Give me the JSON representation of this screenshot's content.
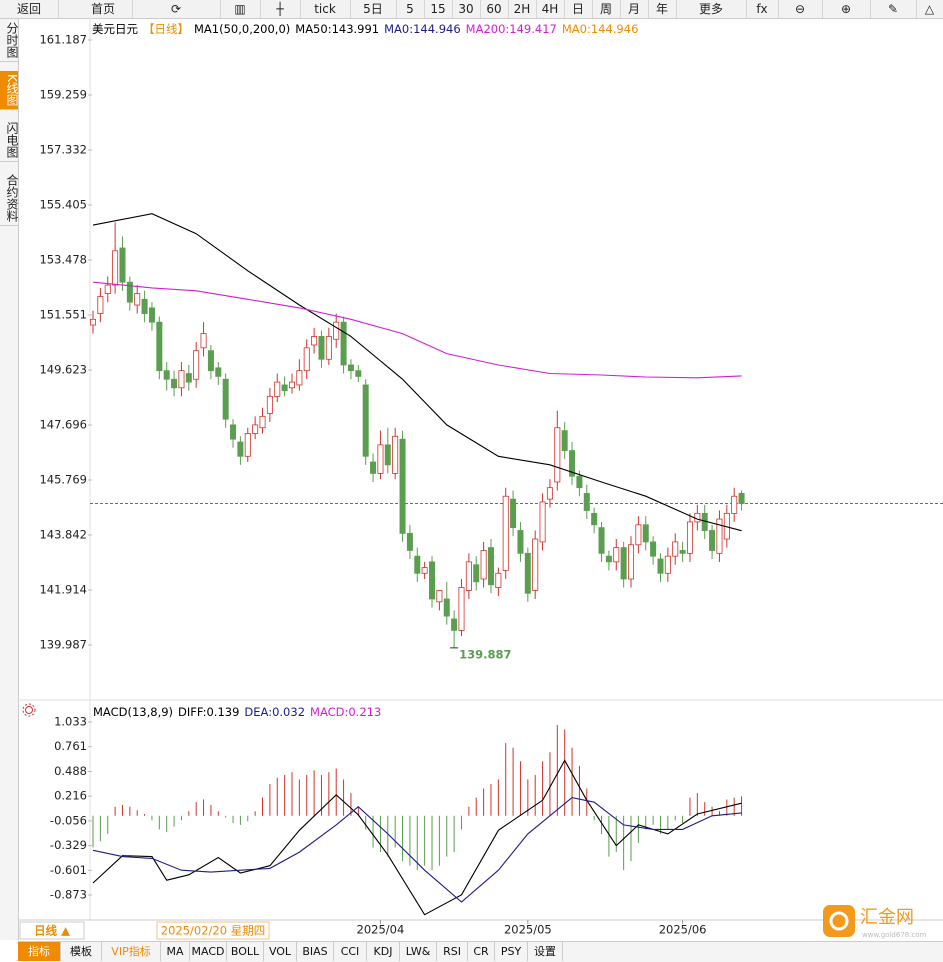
{
  "toolbar": [
    "返回",
    "首页",
    "tick",
    "5日",
    "5",
    "15",
    "30",
    "60",
    "2H",
    "4H",
    "日",
    "周",
    "月",
    "年",
    "更多"
  ],
  "sidebar": [
    "分时图",
    "K线图",
    "闪电图",
    "合约资料"
  ],
  "bottom_tabs": [
    "指标",
    "模板",
    "VIP指标",
    "MA",
    "MACD",
    "BOLL",
    "VOL",
    "BIAS",
    "CCI",
    "KDJ",
    "LW&",
    "RSI",
    "CR",
    "PSY",
    "设置"
  ],
  "period_button": "日线 ▲",
  "crosshair_date": "2025/02/20 星期四",
  "watermark": {
    "name": "汇金网",
    "url": "www.gold678.com"
  },
  "chart_data": [
    {
      "type": "candlestick",
      "legend": [
        {
          "text": "美元日元",
          "color": "#000000"
        },
        {
          "text": "【日线】",
          "color": "#f08a00"
        },
        {
          "text": "MA1(50,0,200,0)",
          "color": "#000000"
        },
        {
          "text": "MA50:143.991",
          "color": "#000000"
        },
        {
          "text": "MA0:144.946",
          "color": "#1c1c8c"
        },
        {
          "text": "MA200:149.417",
          "color": "#d21ed2"
        },
        {
          "text": "MA0:144.946",
          "color": "#f08a00"
        }
      ],
      "categories": [
        null,
        null,
        null,
        null,
        null,
        null,
        null,
        null,
        null,
        null,
        null,
        null,
        null,
        null,
        null,
        null,
        null,
        null,
        null,
        null,
        null,
        null,
        null,
        null,
        null,
        null,
        null,
        null,
        null,
        null,
        null,
        null,
        null,
        null,
        null,
        null,
        null,
        null,
        null,
        "2025/04",
        null,
        null,
        null,
        null,
        null,
        null,
        null,
        null,
        null,
        null,
        null,
        null,
        null,
        null,
        null,
        null,
        null,
        null,
        null,
        "2025/05",
        null,
        null,
        null,
        null,
        null,
        null,
        null,
        null,
        null,
        null,
        null,
        null,
        null,
        null,
        null,
        null,
        null,
        null,
        null,
        null,
        "2025/06",
        null,
        null,
        null,
        null,
        null,
        null,
        null,
        null
      ],
      "open": [
        151.2,
        151.6,
        152.3,
        152.6,
        153.9,
        152.7,
        151.9,
        152.1,
        151.8,
        151.3,
        149.6,
        149.3,
        149.0,
        149.5,
        149.3,
        150.4,
        150.3,
        149.7,
        149.3,
        147.7,
        147.1,
        146.6,
        147.4,
        147.6,
        148.1,
        148.7,
        149.1,
        149.0,
        149.1,
        149.6,
        150.5,
        150.8,
        150.0,
        150.7,
        151.3,
        149.8,
        149.6,
        149.1,
        146.4,
        146.0,
        147.0,
        146.0,
        147.2,
        143.9,
        143.1,
        142.5,
        142.9,
        141.5,
        141.6,
        140.9,
        140.5,
        141.9,
        142.8,
        142.3,
        143.4,
        142.0,
        142.6,
        145.1,
        144.0,
        143.2,
        141.9,
        143.6,
        145.1,
        145.7,
        147.5,
        146.8,
        145.9,
        145.3,
        144.6,
        144.1,
        143.1,
        142.9,
        143.4,
        142.3,
        143.5,
        144.2,
        143.6,
        143.0,
        142.5,
        143.1,
        143.3,
        143.2,
        144.3,
        144.6,
        144.0,
        143.2,
        143.7,
        144.6,
        145.3
      ],
      "high": [
        151.7,
        152.5,
        152.9,
        154.8,
        154.3,
        152.9,
        152.6,
        152.4,
        152.0,
        151.5,
        149.9,
        149.6,
        149.9,
        149.8,
        150.6,
        151.3,
        150.5,
        149.9,
        149.5,
        147.9,
        147.3,
        147.6,
        148.0,
        148.3,
        149.0,
        149.5,
        149.4,
        149.5,
        150.0,
        150.7,
        151.1,
        151.0,
        151.1,
        151.6,
        151.5,
        150.0,
        149.8,
        149.3,
        146.7,
        147.5,
        147.6,
        147.6,
        147.5,
        144.2,
        143.4,
        142.9,
        143.1,
        141.9,
        142.2,
        141.2,
        142.3,
        143.2,
        143.1,
        143.6,
        143.7,
        142.7,
        145.5,
        145.4,
        144.3,
        143.4,
        144.0,
        145.3,
        145.8,
        148.2,
        147.8,
        147.1,
        146.1,
        145.6,
        144.8,
        144.3,
        143.3,
        143.7,
        143.6,
        143.8,
        144.5,
        144.5,
        143.8,
        143.2,
        143.4,
        143.9,
        143.6,
        144.6,
        144.9,
        144.9,
        144.2,
        144.7,
        144.9,
        145.5,
        145.4
      ],
      "low": [
        150.9,
        151.3,
        152.0,
        152.3,
        152.4,
        151.7,
        151.6,
        151.3,
        151.0,
        149.3,
        148.9,
        148.7,
        148.7,
        148.9,
        149.0,
        150.1,
        149.3,
        149.1,
        147.6,
        146.9,
        146.3,
        146.4,
        147.2,
        147.4,
        147.8,
        148.5,
        148.7,
        148.8,
        148.9,
        149.3,
        150.2,
        149.7,
        149.8,
        150.4,
        149.5,
        149.3,
        149.2,
        146.3,
        145.7,
        145.8,
        146.0,
        145.8,
        143.6,
        143.0,
        142.2,
        142.3,
        141.3,
        141.2,
        140.7,
        139.887,
        140.3,
        141.6,
        141.9,
        142.0,
        141.8,
        141.7,
        142.3,
        143.8,
        142.9,
        141.5,
        141.6,
        143.3,
        144.8,
        145.4,
        146.5,
        145.6,
        145.2,
        144.4,
        143.9,
        142.9,
        142.6,
        142.6,
        142.0,
        142.0,
        143.2,
        143.3,
        142.8,
        142.2,
        142.2,
        142.8,
        142.9,
        142.9,
        144.0,
        143.7,
        143.0,
        142.9,
        143.4,
        144.3,
        144.7
      ],
      "close": [
        151.4,
        152.2,
        152.6,
        153.8,
        152.7,
        152.0,
        152.3,
        151.6,
        151.3,
        149.6,
        149.3,
        149.0,
        149.6,
        149.2,
        150.3,
        150.9,
        149.6,
        149.4,
        147.9,
        147.2,
        146.6,
        147.4,
        147.7,
        148.0,
        148.7,
        149.2,
        148.9,
        149.2,
        149.6,
        150.4,
        150.8,
        150.0,
        150.8,
        151.3,
        149.8,
        149.6,
        149.4,
        146.6,
        146.0,
        147.0,
        146.3,
        147.3,
        143.9,
        143.3,
        142.5,
        142.7,
        141.6,
        141.9,
        141.0,
        140.5,
        142.0,
        142.9,
        142.2,
        143.3,
        142.1,
        142.5,
        145.2,
        144.1,
        143.2,
        141.8,
        143.7,
        145.0,
        145.5,
        147.6,
        146.8,
        145.9,
        145.5,
        144.7,
        144.2,
        143.2,
        142.9,
        143.4,
        142.3,
        143.5,
        144.2,
        143.6,
        143.1,
        142.5,
        143.1,
        143.6,
        143.2,
        144.3,
        144.6,
        144.0,
        143.3,
        144.4,
        144.6,
        145.2,
        144.946
      ],
      "up_color": "#d2322d",
      "down_color": "#5a9e50",
      "low_label": "139.887",
      "lines": [
        {
          "color": "#000000",
          "x": [
            0,
            8,
            14,
            21,
            28,
            35,
            42,
            48,
            55,
            62,
            69,
            75,
            82,
            88
          ],
          "values": [
            154.7,
            155.1,
            154.4,
            153.1,
            151.9,
            150.8,
            149.3,
            147.7,
            146.6,
            146.3,
            145.7,
            145.2,
            144.4,
            143.991
          ]
        },
        {
          "color": "#d21ed2",
          "x": [
            0,
            8,
            14,
            21,
            28,
            35,
            42,
            48,
            55,
            62,
            69,
            75,
            82,
            88
          ],
          "values": [
            152.7,
            152.5,
            152.4,
            152.1,
            151.8,
            151.4,
            150.9,
            150.2,
            149.8,
            149.5,
            149.45,
            149.38,
            149.35,
            149.417
          ]
        }
      ],
      "reference_line": {
        "value": 144.946,
        "color": "#2a8a8a"
      },
      "ylim": [
        138.06,
        161.888
      ],
      "yticks": [
        161.187,
        159.259,
        157.332,
        155.405,
        153.478,
        151.551,
        149.623,
        147.696,
        145.769,
        143.842,
        141.914,
        139.987
      ]
    },
    {
      "type": "macd",
      "legend": [
        {
          "text": "MACD(13,8,9)",
          "color": "#000000"
        },
        {
          "text": "DIFF:0.139",
          "color": "#000000"
        },
        {
          "text": "DEA:0.032",
          "color": "#1c1c8c"
        },
        {
          "text": "MACD:0.213",
          "color": "#d21ed2"
        }
      ],
      "histogram": [
        -0.35,
        -0.28,
        -0.2,
        0.1,
        0.12,
        0.1,
        0.06,
        0.02,
        -0.05,
        -0.15,
        -0.18,
        -0.12,
        -0.05,
        0.05,
        0.15,
        0.18,
        0.12,
        0.05,
        -0.02,
        -0.08,
        -0.1,
        -0.06,
        0.05,
        0.2,
        0.35,
        0.42,
        0.45,
        0.48,
        0.4,
        0.45,
        0.5,
        0.45,
        0.48,
        0.52,
        0.4,
        0.25,
        0.1,
        -0.15,
        -0.35,
        -0.4,
        -0.45,
        -0.35,
        -0.5,
        -0.55,
        -0.6,
        -0.55,
        -0.6,
        -0.55,
        -0.45,
        -0.4,
        -0.15,
        0.1,
        0.2,
        0.3,
        0.35,
        0.4,
        0.8,
        0.75,
        0.6,
        0.4,
        0.45,
        0.6,
        0.7,
        1.0,
        0.95,
        0.75,
        0.55,
        0.3,
        -0.05,
        -0.2,
        -0.45,
        -0.4,
        -0.6,
        -0.5,
        -0.3,
        -0.15,
        -0.1,
        -0.2,
        -0.15,
        -0.05,
        -0.08,
        0.2,
        0.25,
        0.15,
        0.1,
        0.05,
        0.18,
        0.2,
        0.213
      ],
      "up_color": "#d2322d",
      "down_color": "#5a9e50",
      "series": [
        {
          "color": "#000000",
          "x": [
            0,
            4,
            8,
            10,
            13,
            17,
            20,
            24,
            28,
            33,
            36,
            40,
            45,
            50,
            55,
            59,
            61,
            64,
            67,
            71,
            74,
            78,
            82,
            88
          ],
          "values": [
            -0.74,
            -0.44,
            -0.45,
            -0.71,
            -0.65,
            -0.46,
            -0.63,
            -0.55,
            -0.16,
            0.23,
            0.01,
            -0.43,
            -1.09,
            -0.87,
            -0.16,
            0.06,
            0.17,
            0.61,
            0.17,
            -0.33,
            -0.1,
            -0.2,
            0.02,
            0.139
          ]
        },
        {
          "color": "#1c1c8c",
          "x": [
            0,
            4,
            8,
            12,
            16,
            20,
            24,
            28,
            33,
            36,
            40,
            45,
            50,
            55,
            59,
            62,
            65,
            68,
            72,
            76,
            80,
            84,
            88
          ],
          "values": [
            -0.38,
            -0.45,
            -0.47,
            -0.6,
            -0.62,
            -0.6,
            -0.58,
            -0.4,
            -0.1,
            0.1,
            -0.2,
            -0.6,
            -0.95,
            -0.6,
            -0.2,
            0.0,
            0.2,
            0.15,
            -0.1,
            -0.15,
            -0.15,
            0.0,
            0.032
          ]
        }
      ],
      "ylim": [
        -1.148,
        1.11
      ],
      "yticks": [
        1.033,
        0.761,
        0.488,
        0.216,
        -0.056,
        -0.329,
        -0.601,
        -0.873
      ]
    }
  ]
}
